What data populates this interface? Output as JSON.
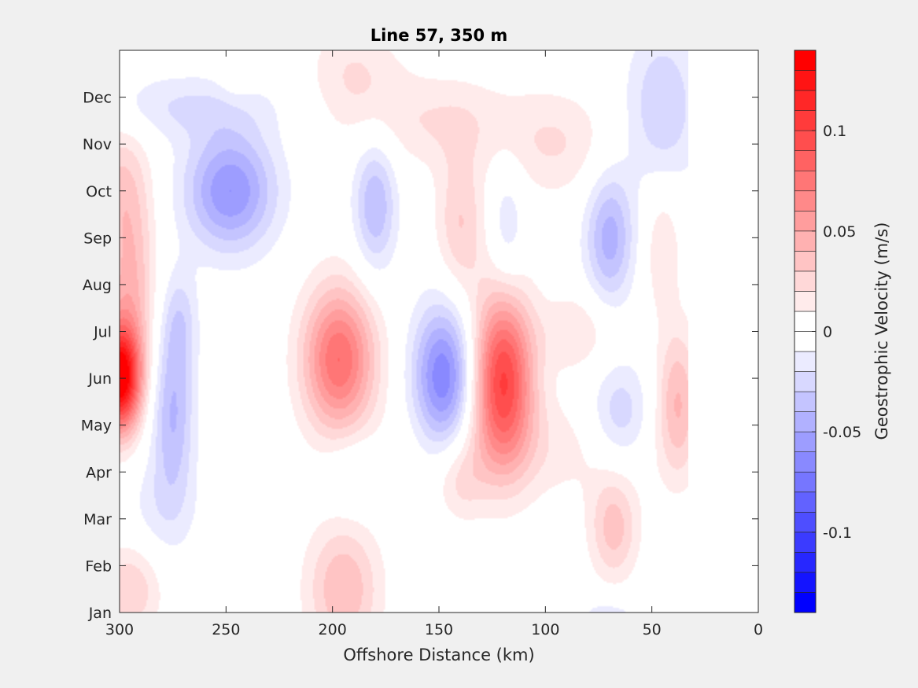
{
  "chart_data": {
    "type": "heatmap",
    "subtype": "filled-contour",
    "title": "Line 57, 350 m",
    "xlabel": "Offshore Distance (km)",
    "ylabel": "",
    "xlim": [
      300,
      0
    ],
    "x_reversed": true,
    "x_ticks": [
      300,
      250,
      200,
      150,
      100,
      50,
      0
    ],
    "x_tick_labels": [
      "300",
      "250",
      "200",
      "150",
      "100",
      "50",
      "0"
    ],
    "y_ticks": [
      "Jan",
      "Feb",
      "Mar",
      "Apr",
      "May",
      "Jun",
      "Jul",
      "Aug",
      "Sep",
      "Oct",
      "Nov",
      "Dec"
    ],
    "y_tick_values": [
      1,
      2,
      3,
      4,
      5,
      6,
      7,
      8,
      9,
      10,
      11,
      12
    ],
    "ylim": [
      1,
      13
    ],
    "data_x_range": [
      300,
      33
    ],
    "colorbar": {
      "label": "Geostrophic Velocity (m/s)",
      "range": [
        -0.14,
        0.14
      ],
      "levels": 28,
      "colormap": "blue-white-red",
      "ticks": [
        0.1,
        0.05,
        0,
        -0.05,
        -0.1
      ],
      "tick_labels": [
        "0.1",
        "0.05",
        "0",
        "-0.05",
        "-0.1"
      ],
      "color_positive": "#ff0000",
      "color_negative": "#0000ff",
      "color_zero": "#ffffff"
    },
    "features": [
      {
        "x": 300,
        "y": 6.0,
        "value": 0.14,
        "sx": 7,
        "sy": 0.8
      },
      {
        "x": 295,
        "y": 8.0,
        "value": 0.04,
        "sx": 8,
        "sy": 1.4
      },
      {
        "x": 300,
        "y": 10.2,
        "value": 0.025,
        "sx": 10,
        "sy": 1.0
      },
      {
        "x": 295,
        "y": 1.5,
        "value": 0.03,
        "sx": 10,
        "sy": 0.7
      },
      {
        "x": 275,
        "y": 5.2,
        "value": -0.04,
        "sx": 7,
        "sy": 1.2
      },
      {
        "x": 272,
        "y": 7.2,
        "value": -0.025,
        "sx": 6,
        "sy": 0.8
      },
      {
        "x": 280,
        "y": 3.2,
        "value": -0.015,
        "sx": 12,
        "sy": 0.8
      },
      {
        "x": 248,
        "y": 10.0,
        "value": -0.06,
        "sx": 15,
        "sy": 0.9
      },
      {
        "x": 270,
        "y": 11.8,
        "value": -0.02,
        "sx": 30,
        "sy": 0.5
      },
      {
        "x": 245,
        "y": 12.5,
        "value": 0.012,
        "sx": 6,
        "sy": 0.4
      },
      {
        "x": 197,
        "y": 6.4,
        "value": 0.08,
        "sx": 12,
        "sy": 1.1
      },
      {
        "x": 195,
        "y": 1.5,
        "value": 0.04,
        "sx": 12,
        "sy": 1.0
      },
      {
        "x": 190,
        "y": 4.0,
        "value": -0.015,
        "sx": 10,
        "sy": 0.6
      },
      {
        "x": 180,
        "y": 9.7,
        "value": -0.04,
        "sx": 7,
        "sy": 1.0
      },
      {
        "x": 190,
        "y": 12.5,
        "value": 0.02,
        "sx": 15,
        "sy": 0.8
      },
      {
        "x": 148,
        "y": 6.0,
        "value": -0.07,
        "sx": 10,
        "sy": 1.1
      },
      {
        "x": 140,
        "y": 9.3,
        "value": 0.03,
        "sx": 8,
        "sy": 1.1
      },
      {
        "x": 140,
        "y": 3.8,
        "value": 0.02,
        "sx": 8,
        "sy": 0.6
      },
      {
        "x": 150,
        "y": 11.5,
        "value": 0.02,
        "sx": 25,
        "sy": 0.7
      },
      {
        "x": 120,
        "y": 6.0,
        "value": 0.1,
        "sx": 10,
        "sy": 1.3
      },
      {
        "x": 118,
        "y": 9.2,
        "value": -0.02,
        "sx": 6,
        "sy": 1.0
      },
      {
        "x": 105,
        "y": 4.5,
        "value": 0.015,
        "sx": 40,
        "sy": 0.8
      },
      {
        "x": 85,
        "y": 7.0,
        "value": 0.02,
        "sx": 12,
        "sy": 0.6
      },
      {
        "x": 95,
        "y": 11.0,
        "value": 0.02,
        "sx": 18,
        "sy": 0.8
      },
      {
        "x": 70,
        "y": 9.0,
        "value": -0.045,
        "sx": 8,
        "sy": 1.0
      },
      {
        "x": 68,
        "y": 2.8,
        "value": 0.035,
        "sx": 8,
        "sy": 0.8
      },
      {
        "x": 65,
        "y": 5.2,
        "value": -0.03,
        "sx": 10,
        "sy": 0.8
      },
      {
        "x": 45,
        "y": 8.8,
        "value": 0.02,
        "sx": 6,
        "sy": 1.0
      },
      {
        "x": 38,
        "y": 5.5,
        "value": 0.04,
        "sx": 7,
        "sy": 1.1
      },
      {
        "x": 45,
        "y": 11.8,
        "value": -0.03,
        "sx": 12,
        "sy": 1.2
      },
      {
        "x": 70,
        "y": 1.0,
        "value": -0.015,
        "sx": 12,
        "sy": 0.3
      }
    ]
  }
}
